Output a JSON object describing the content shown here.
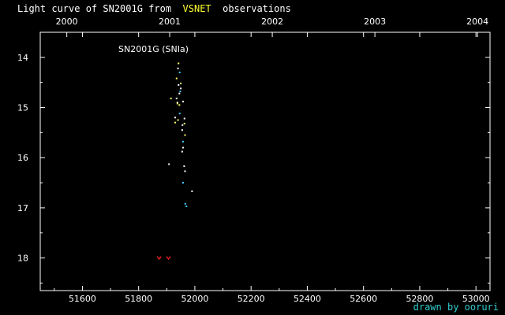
{
  "header": {
    "title_prefix": "Light curve of SN2001G from",
    "title_source": "VSNET",
    "title_suffix": "observations"
  },
  "footer": {
    "credit": "drawn by ooruri"
  },
  "colors": {
    "background": "#000000",
    "axis": "#ffffff",
    "text": "#ffffff",
    "source_highlight": "#ffff33",
    "credit": "#33cccc",
    "visual_obs": "#ffffff",
    "ccd_v_obs": "#ffff66",
    "ccd_unfiltered_obs": "#44ccff",
    "upper_limit": "#ff2222"
  },
  "chart_data": {
    "type": "scatter",
    "title": "SN2001G (SNIa)",
    "xlabel": "",
    "ylabel": "",
    "xlim": [
      51450,
      53050
    ],
    "ylim": [
      18.65,
      13.5
    ],
    "y_inverted": true,
    "grid": false,
    "x_ticks_bottom": [
      51600,
      51800,
      52000,
      52200,
      52400,
      52600,
      52800,
      53000
    ],
    "x_ticks_top": [
      {
        "label": "2000",
        "jd": 51544.5
      },
      {
        "label": "2001",
        "jd": 51910.5
      },
      {
        "label": "2002",
        "jd": 52275.5
      },
      {
        "label": "2003",
        "jd": 52640.5
      },
      {
        "label": "2004",
        "jd": 53005.5
      }
    ],
    "y_ticks": [
      14,
      15,
      16,
      17,
      18
    ],
    "series": [
      {
        "marker": "dot",
        "color": "#ffffff",
        "points": [
          [
            51940,
            14.22
          ],
          [
            51942,
            14.55
          ],
          [
            51945,
            14.72
          ],
          [
            51935,
            14.82
          ],
          [
            51938,
            14.9
          ],
          [
            51958,
            14.88
          ],
          [
            51950,
            14.62
          ],
          [
            51930,
            15.2
          ],
          [
            51963,
            15.22
          ],
          [
            51956,
            15.35
          ],
          [
            51955,
            15.45
          ],
          [
            51958,
            15.8
          ],
          [
            51955,
            15.88
          ],
          [
            51908,
            16.13
          ],
          [
            51962,
            16.17
          ],
          [
            51965,
            16.27
          ],
          [
            51990,
            16.67
          ]
        ]
      },
      {
        "marker": "dot",
        "color": "#ffff66",
        "points": [
          [
            51942,
            14.12
          ],
          [
            51935,
            14.42
          ],
          [
            51950,
            14.52
          ],
          [
            51915,
            14.82
          ],
          [
            51938,
            14.92
          ],
          [
            51945,
            14.95
          ],
          [
            51963,
            15.32
          ],
          [
            51965,
            15.55
          ],
          [
            51930,
            15.3
          ],
          [
            51940,
            15.25
          ]
        ]
      },
      {
        "marker": "dot",
        "color": "#44ccff",
        "points": [
          [
            51946,
            14.3
          ],
          [
            51948,
            14.68
          ],
          [
            51946,
            15.12
          ],
          [
            51958,
            15.68
          ],
          [
            51958,
            16.5
          ],
          [
            51966,
            16.92
          ],
          [
            51970,
            16.97
          ]
        ]
      },
      {
        "marker": "fainter-than",
        "color": "#ff2222",
        "points": [
          [
            51873,
            18.0
          ],
          [
            51906,
            18.0
          ]
        ]
      }
    ]
  }
}
